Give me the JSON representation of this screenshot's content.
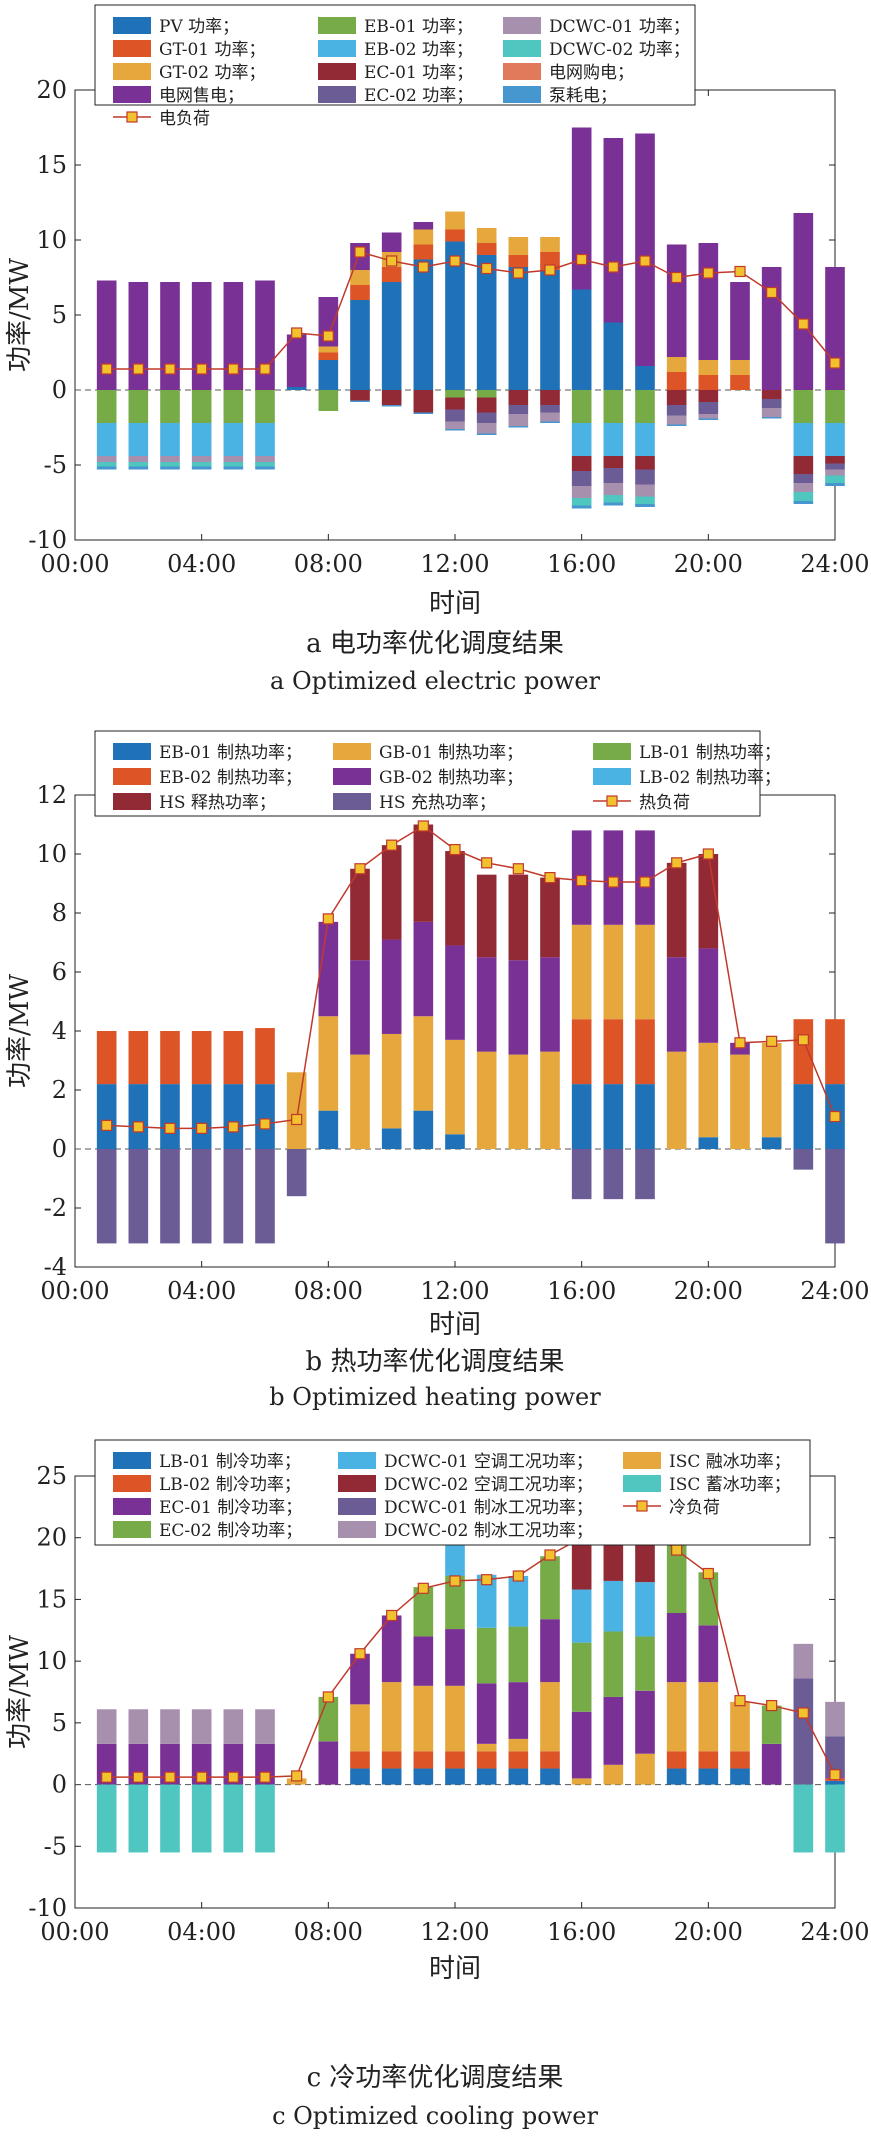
{
  "chart_data": [
    {
      "id": "a",
      "type": "bar",
      "stacked": true,
      "xlabel": "时间",
      "ylabel": "功率/MW",
      "xticks": [
        "00:00",
        "04:00",
        "08:00",
        "12:00",
        "16:00",
        "20:00",
        "24:00"
      ],
      "x": [
        1,
        2,
        3,
        4,
        5,
        6,
        7,
        8,
        9,
        10,
        11,
        12,
        13,
        14,
        15,
        16,
        17,
        18,
        19,
        20,
        21,
        22,
        23,
        24
      ],
      "ylim": [
        -10,
        20
      ],
      "yticks": [
        -10,
        -5,
        0,
        5,
        10,
        15,
        20
      ],
      "caption_cn": "a 电功率优化调度结果",
      "caption_en": "a Optimized electric power",
      "legend_cols": 3,
      "legend": [
        "PV 功率；",
        "EB-01 功率；",
        "DCWC-01 功率；",
        "GT-01 功率；",
        "EB-02 功率；",
        "DCWC-02 功率；",
        "GT-02 功率；",
        "EC-01 功率；",
        "电网购电；",
        "电网售电；",
        "EC-02 功率；",
        "泵耗电；",
        "电负荷"
      ],
      "series": [
        {
          "name": "PV 功率；",
          "color": "#1f72b8",
          "values": [
            0,
            0,
            0,
            0,
            0,
            0,
            0.2,
            2.0,
            6.0,
            7.2,
            8.7,
            9.9,
            9.0,
            8.2,
            8.0,
            6.7,
            4.5,
            1.6,
            0,
            0,
            0,
            0,
            0,
            0
          ]
        },
        {
          "name": "GT-01 功率；",
          "color": "#dd5427",
          "values": [
            0,
            0,
            0,
            0,
            0,
            0,
            0,
            0.5,
            1.0,
            1.0,
            1.0,
            0.8,
            0.8,
            0.8,
            1.2,
            0,
            0,
            0,
            1.2,
            1.0,
            1.0,
            0,
            0,
            0
          ]
        },
        {
          "name": "GT-02 功率；",
          "color": "#e6a83c",
          "values": [
            0,
            0,
            0,
            0,
            0,
            0,
            0,
            0.4,
            1.0,
            1.0,
            1.0,
            1.2,
            1.0,
            1.2,
            1.0,
            0,
            0,
            0,
            1.0,
            1.0,
            1.0,
            0,
            0,
            0
          ]
        },
        {
          "name": "电网售电；",
          "color": "#7a3196",
          "values": [
            7.3,
            7.2,
            7.2,
            7.2,
            7.2,
            7.3,
            3.5,
            3.3,
            1.8,
            1.3,
            0.5,
            0,
            0,
            0,
            0,
            10.8,
            12.3,
            15.5,
            7.5,
            7.8,
            5.2,
            8.2,
            11.8,
            8.2
          ]
        },
        {
          "name": "EB-01 功率；",
          "color": "#76ab48",
          "values": [
            -2.2,
            -2.2,
            -2.2,
            -2.2,
            -2.2,
            -2.2,
            0,
            -1.4,
            0,
            0,
            0,
            -0.5,
            -0.5,
            0,
            0,
            -2.2,
            -2.2,
            -2.2,
            0,
            0,
            0,
            0,
            -2.2,
            -2.2
          ]
        },
        {
          "name": "EB-02 功率；",
          "color": "#4bb3e3",
          "values": [
            -2.2,
            -2.2,
            -2.2,
            -2.2,
            -2.2,
            -2.2,
            0,
            0,
            0,
            0,
            0,
            0,
            0,
            0,
            0,
            -2.2,
            -2.2,
            -2.2,
            0,
            0,
            0,
            0,
            -2.2,
            -2.2
          ]
        },
        {
          "name": "EC-01 功率；",
          "color": "#912a34",
          "values": [
            0,
            0,
            0,
            0,
            0,
            0,
            0,
            0,
            -0.7,
            -1.0,
            -1.5,
            -0.8,
            -1.0,
            -1.0,
            -1.0,
            -1.0,
            -0.8,
            -0.9,
            -1.0,
            -0.8,
            0,
            -0.6,
            -1.2,
            -0.5
          ]
        },
        {
          "name": "EC-02 功率；",
          "color": "#6b5c96",
          "values": [
            0,
            0,
            0,
            0,
            0,
            0,
            0,
            0,
            0,
            0,
            0,
            -0.8,
            -0.7,
            -0.6,
            -0.5,
            -1.0,
            -1.0,
            -1.0,
            -0.7,
            -0.8,
            0,
            -0.6,
            -0.6,
            -0.4
          ]
        },
        {
          "name": "DCWC-01 功率；",
          "color": "#a78fae",
          "values": [
            -0.4,
            -0.4,
            -0.4,
            -0.4,
            -0.4,
            -0.4,
            0,
            0,
            0,
            0,
            0,
            -0.5,
            -0.7,
            -0.8,
            -0.6,
            -0.8,
            -0.8,
            -0.8,
            -0.6,
            -0.3,
            0,
            -0.6,
            -0.6,
            -0.4
          ]
        },
        {
          "name": "DCWC-02 功率；",
          "color": "#4fc6bf",
          "values": [
            -0.3,
            -0.3,
            -0.3,
            -0.3,
            -0.3,
            -0.3,
            0,
            0,
            0,
            0,
            0,
            0,
            0,
            0,
            0,
            -0.5,
            -0.5,
            -0.5,
            0,
            0,
            0,
            0,
            -0.6,
            -0.5
          ]
        },
        {
          "name": "泵耗电；",
          "color": "#4696cf",
          "values": [
            -0.2,
            -0.2,
            -0.2,
            -0.2,
            -0.2,
            -0.2,
            0,
            0,
            -0.1,
            -0.1,
            -0.1,
            -0.1,
            -0.1,
            -0.1,
            -0.1,
            -0.2,
            -0.2,
            -0.2,
            -0.1,
            -0.1,
            0,
            -0.1,
            -0.2,
            -0.2
          ]
        },
        {
          "name": "电网购电；",
          "color": "#e07a5a",
          "values": [
            0,
            0,
            0,
            0,
            0,
            0,
            0,
            0,
            0,
            0,
            0,
            0,
            0,
            0,
            0,
            0,
            0,
            0,
            0,
            0,
            0,
            0,
            0,
            0
          ]
        }
      ],
      "line": {
        "name": "电负荷",
        "color": "#c0392b",
        "values": [
          1.4,
          1.4,
          1.4,
          1.4,
          1.4,
          1.4,
          3.8,
          3.6,
          9.2,
          8.6,
          8.2,
          8.6,
          8.1,
          7.8,
          8.0,
          8.7,
          8.2,
          8.6,
          7.5,
          7.8,
          7.9,
          6.5,
          4.4,
          1.8
        ]
      }
    },
    {
      "id": "b",
      "type": "bar",
      "stacked": true,
      "xlabel": "时间",
      "ylabel": "功率/MW",
      "xticks": [
        "00:00",
        "04:00",
        "08:00",
        "12:00",
        "16:00",
        "20:00",
        "24:00"
      ],
      "x": [
        1,
        2,
        3,
        4,
        5,
        6,
        7,
        8,
        9,
        10,
        11,
        12,
        13,
        14,
        15,
        16,
        17,
        18,
        19,
        20,
        21,
        22,
        23,
        24
      ],
      "ylim": [
        -4,
        12
      ],
      "yticks": [
        -4,
        -2,
        0,
        2,
        4,
        6,
        8,
        10,
        12
      ],
      "caption_cn": "b 热功率优化调度结果",
      "caption_en": "b Optimized heating power",
      "legend_cols": 3,
      "legend": [
        "EB-01 制热功率；",
        "GB-01 制热功率；",
        "LB-01 制热功率；",
        "EB-02 制热功率；",
        "GB-02 制热功率；",
        "LB-02 制热功率；",
        "HS 释热功率；",
        "HS 充热功率；",
        "热负荷"
      ],
      "series": [
        {
          "name": "EB-01 制热功率；",
          "color": "#1f72b8",
          "values": [
            2.2,
            2.2,
            2.2,
            2.2,
            2.2,
            2.2,
            0,
            1.3,
            0,
            0.7,
            1.3,
            0.5,
            0,
            0,
            0,
            2.2,
            2.2,
            2.2,
            0,
            0.4,
            0,
            0.4,
            2.2,
            2.2
          ]
        },
        {
          "name": "EB-02 制热功率；",
          "color": "#dd5427",
          "values": [
            1.8,
            1.8,
            1.8,
            1.8,
            1.8,
            1.9,
            0,
            0,
            0,
            0,
            0,
            0,
            0,
            0,
            0,
            2.2,
            2.2,
            2.2,
            0,
            0,
            0,
            0,
            2.2,
            2.2
          ]
        },
        {
          "name": "GB-01 制热功率；",
          "color": "#e6a83c",
          "values": [
            0,
            0,
            0,
            0,
            0,
            0,
            2.6,
            3.2,
            3.2,
            3.2,
            3.2,
            3.2,
            3.3,
            3.2,
            3.3,
            3.2,
            3.2,
            3.2,
            3.3,
            3.2,
            3.2,
            3.2,
            0,
            0
          ]
        },
        {
          "name": "GB-02 制热功率；",
          "color": "#7a3196",
          "values": [
            0,
            0,
            0,
            0,
            0,
            0,
            0,
            3.2,
            3.2,
            3.2,
            3.2,
            3.2,
            3.2,
            3.2,
            3.2,
            3.2,
            3.2,
            3.2,
            3.2,
            3.2,
            0.4,
            0,
            0,
            0
          ]
        },
        {
          "name": "HS 释热功率；",
          "color": "#912a34",
          "values": [
            0,
            0,
            0,
            0,
            0,
            0,
            0,
            0,
            3.1,
            3.2,
            3.3,
            3.2,
            2.8,
            2.9,
            2.7,
            0,
            0,
            0,
            3.2,
            3.2,
            0,
            0,
            0,
            0
          ]
        },
        {
          "name": "HS 充热功率；",
          "color": "#6b5c96",
          "values": [
            -3.2,
            -3.2,
            -3.2,
            -3.2,
            -3.2,
            -3.2,
            -1.6,
            0,
            0,
            0,
            0,
            0,
            0,
            0,
            0,
            -1.7,
            -1.7,
            -1.7,
            0,
            0,
            0,
            0,
            -0.7,
            -3.2
          ]
        },
        {
          "name": "LB-01 制热功率；",
          "color": "#76ab48",
          "values": [
            0,
            0,
            0,
            0,
            0,
            0,
            0,
            0,
            0,
            0,
            0,
            0,
            0,
            0,
            0,
            0,
            0,
            0,
            0,
            0,
            0,
            0,
            0,
            0
          ]
        },
        {
          "name": "LB-02 制热功率；",
          "color": "#4bb3e3",
          "values": [
            0,
            0,
            0,
            0,
            0,
            0,
            0,
            0,
            0,
            0,
            0,
            0,
            0,
            0,
            0,
            0,
            0,
            0,
            0,
            0,
            0,
            0,
            0,
            0
          ]
        }
      ],
      "line": {
        "name": "热负荷",
        "color": "#c0392b",
        "values": [
          0.8,
          0.75,
          0.7,
          0.7,
          0.75,
          0.85,
          1.0,
          7.8,
          9.5,
          10.3,
          10.95,
          10.15,
          9.7,
          9.5,
          9.2,
          9.1,
          9.05,
          9.05,
          9.7,
          10.0,
          3.6,
          3.65,
          3.7,
          1.1
        ]
      }
    },
    {
      "id": "c",
      "type": "bar",
      "stacked": true,
      "xlabel": "时间",
      "ylabel": "功率/MW",
      "xticks": [
        "00:00",
        "04:00",
        "08:00",
        "12:00",
        "16:00",
        "20:00",
        "24:00"
      ],
      "x": [
        1,
        2,
        3,
        4,
        5,
        6,
        7,
        8,
        9,
        10,
        11,
        12,
        13,
        14,
        15,
        16,
        17,
        18,
        19,
        20,
        21,
        22,
        23,
        24
      ],
      "ylim": [
        -10,
        25
      ],
      "yticks": [
        -10,
        -5,
        0,
        5,
        10,
        15,
        20,
        25
      ],
      "caption_cn": "c 冷功率优化调度结果",
      "caption_en": "c Optimized cooling power",
      "legend_cols": 3,
      "legend": [
        "LB-01 制冷功率；",
        "DCWC-01 空调工况功率；",
        "ISC 融冰功率；",
        "LB-02 制冷功率；",
        "DCWC-02 空调工况功率；",
        "ISC 蓄冰功率；",
        "EC-01 制冷功率；",
        "DCWC-01 制冰工况功率；",
        "冷负荷",
        "EC-02 制冷功率；",
        "DCWC-02 制冰工况功率；"
      ],
      "series": [
        {
          "name": "LB-01 制冷功率；",
          "color": "#1f72b8",
          "values": [
            0,
            0,
            0,
            0,
            0,
            0,
            0,
            0,
            1.3,
            1.3,
            1.3,
            1.3,
            1.3,
            1.3,
            1.3,
            0,
            0,
            0,
            1.3,
            1.3,
            1.3,
            0,
            0,
            0.3
          ]
        },
        {
          "name": "LB-02 制冷功率；",
          "color": "#dd5427",
          "values": [
            0,
            0,
            0,
            0,
            0,
            0,
            0,
            0,
            1.4,
            1.4,
            1.4,
            1.4,
            1.4,
            1.4,
            1.4,
            0,
            0,
            0,
            1.4,
            1.4,
            1.4,
            0,
            0,
            0.2
          ]
        },
        {
          "name": "ISC 融冰功率；",
          "color": "#e6a83c",
          "values": [
            0,
            0,
            0,
            0,
            0,
            0,
            0.5,
            0,
            3.8,
            5.6,
            5.3,
            5.3,
            0.6,
            1.0,
            5.6,
            0.5,
            1.6,
            2.5,
            5.6,
            5.6,
            4.0,
            0,
            0,
            0
          ]
        },
        {
          "name": "EC-01 制冷功率；",
          "color": "#7a3196",
          "values": [
            3.3,
            3.3,
            3.3,
            3.3,
            3.3,
            3.3,
            0,
            3.5,
            4.1,
            5.4,
            4.0,
            4.6,
            4.9,
            4.6,
            5.1,
            5.4,
            5.5,
            5.1,
            5.6,
            4.6,
            0,
            3.3,
            0,
            0.1
          ]
        },
        {
          "name": "EC-02 制冷功率；",
          "color": "#76ab48",
          "values": [
            0,
            0,
            0,
            0,
            0,
            0,
            0,
            3.6,
            0,
            0,
            4.0,
            4.3,
            4.5,
            4.5,
            5.1,
            5.6,
            5.3,
            4.4,
            5.6,
            4.3,
            0,
            3.1,
            0,
            0
          ]
        },
        {
          "name": "DCWC-01 空调工况功率；",
          "color": "#4bb3e3",
          "values": [
            0,
            0,
            0,
            0,
            0,
            0,
            0,
            0,
            0,
            0,
            0,
            4.1,
            4.3,
            4.1,
            0,
            4.3,
            4.1,
            4.4,
            0,
            0,
            0,
            0,
            0,
            0
          ]
        },
        {
          "name": "DCWC-02 空调工况功率；",
          "color": "#912a34",
          "values": [
            0,
            0,
            0,
            0,
            0,
            0,
            0,
            0,
            0,
            0,
            0,
            0,
            0,
            0,
            0,
            4.1,
            4.1,
            4.5,
            0,
            0,
            0,
            0,
            0,
            0
          ]
        },
        {
          "name": "DCWC-01 制冰工况功率；",
          "color": "#6b5c96",
          "values": [
            0,
            0,
            0,
            0,
            0,
            0,
            0,
            0,
            0,
            0,
            0,
            0,
            0,
            0,
            0,
            0,
            0,
            0,
            0,
            0,
            0,
            0,
            8.6,
            3.3
          ]
        },
        {
          "name": "DCWC-02 制冰工况功率；",
          "color": "#a78fae",
          "values": [
            2.8,
            2.8,
            2.8,
            2.8,
            2.8,
            2.8,
            0,
            0,
            0,
            0,
            0,
            0,
            0,
            0,
            0,
            0,
            0,
            0,
            0,
            0,
            0,
            0,
            2.8,
            2.8
          ]
        },
        {
          "name": "ISC 蓄冰功率；",
          "color": "#4fc6bf",
          "values": [
            -5.5,
            -5.5,
            -5.5,
            -5.5,
            -5.5,
            -5.5,
            0,
            0,
            0,
            0,
            0,
            0,
            0,
            0,
            0,
            0,
            0,
            0,
            0,
            0,
            0,
            0,
            -5.5,
            -5.5
          ]
        }
      ],
      "line": {
        "name": "冷负荷",
        "color": "#c0392b",
        "values": [
          0.6,
          0.6,
          0.6,
          0.6,
          0.6,
          0.6,
          0.7,
          7.1,
          10.6,
          13.7,
          15.9,
          16.5,
          16.6,
          16.9,
          18.6,
          20.0,
          20.6,
          20.9,
          19.0,
          17.1,
          6.8,
          6.4,
          5.8,
          0.8
        ]
      }
    }
  ]
}
